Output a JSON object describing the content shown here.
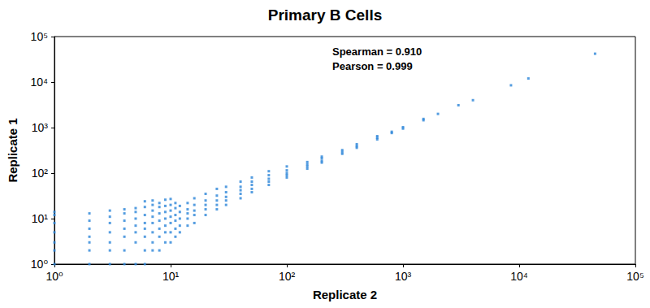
{
  "chart_data": {
    "type": "scatter",
    "title": "Primary B Cells",
    "x_label": "Replicate 2",
    "y_label": "Replicate 1",
    "annotations": [
      "Spearman = 0.910",
      "Pearson = 0.999"
    ],
    "log": true,
    "grid": false,
    "color": "#2b84d8",
    "marker": "square",
    "xlim": [
      1,
      100000
    ],
    "ylim": [
      1,
      100000
    ],
    "xticks": [
      {
        "value": 1,
        "label": "10⁰"
      },
      {
        "value": 10,
        "label": "10¹"
      },
      {
        "value": 100,
        "label": "10²"
      },
      {
        "value": 1000,
        "label": "10³"
      },
      {
        "value": 10000,
        "label": "10⁴"
      },
      {
        "value": 100000,
        "label": "10⁵"
      }
    ],
    "yticks": [
      {
        "value": 1,
        "label": "10⁰"
      },
      {
        "value": 10,
        "label": "10¹"
      },
      {
        "value": 100,
        "label": "10²"
      },
      {
        "value": 1000,
        "label": "10³"
      },
      {
        "value": 10000,
        "label": "10⁴"
      },
      {
        "value": 100000,
        "label": "10⁵"
      }
    ],
    "x": [
      1,
      1,
      1,
      1,
      1,
      1,
      1,
      2,
      2,
      2,
      2,
      2,
      2,
      2,
      3,
      3,
      3,
      3,
      3,
      3,
      3,
      4,
      4,
      4,
      4,
      4,
      4,
      4,
      5,
      5,
      5,
      5,
      5,
      5,
      5,
      6,
      6,
      6,
      6,
      6,
      6,
      6,
      6,
      7,
      7,
      7,
      7,
      7,
      7,
      7,
      7,
      8,
      8,
      8,
      8,
      8,
      8,
      8,
      9,
      9,
      9,
      9,
      9,
      9,
      9,
      10,
      10,
      10,
      10,
      10,
      10,
      10,
      11,
      11,
      11,
      11,
      11,
      11,
      12,
      12,
      12,
      12,
      12,
      14,
      14,
      14,
      14,
      14,
      16,
      16,
      16,
      16,
      16,
      20,
      20,
      20,
      20,
      20,
      25,
      25,
      25,
      25,
      25,
      30,
      30,
      30,
      30,
      30,
      40,
      40,
      40,
      40,
      40,
      50,
      50,
      50,
      50,
      50,
      70,
      70,
      70,
      70,
      70,
      100,
      100,
      100,
      100,
      100,
      150,
      150,
      150,
      150,
      200,
      200,
      200,
      200,
      300,
      300,
      300,
      400,
      400,
      400,
      600,
      600,
      600,
      800,
      800,
      1000,
      1000,
      1500,
      1500,
      2000,
      3000,
      4000,
      8500,
      12000,
      45000
    ],
    "values": [
      1,
      2,
      3,
      5,
      8,
      12,
      14,
      1,
      2,
      3,
      4,
      6,
      9,
      13,
      1,
      2,
      3,
      5,
      8,
      11,
      15,
      1,
      2,
      4,
      6,
      9,
      13,
      16,
      1,
      3,
      5,
      7,
      10,
      14,
      17,
      1,
      2,
      4,
      6,
      8,
      12,
      18,
      24,
      2,
      3,
      5,
      8,
      11,
      15,
      20,
      25,
      2,
      4,
      6,
      9,
      13,
      18,
      22,
      3,
      5,
      7,
      10,
      14,
      19,
      26,
      3,
      5,
      8,
      11,
      15,
      20,
      27,
      4,
      6,
      9,
      12,
      17,
      22,
      5,
      7,
      10,
      14,
      19,
      7,
      10,
      13,
      16,
      22,
      8,
      12,
      15,
      20,
      28,
      12,
      16,
      20,
      25,
      35,
      16,
      20,
      25,
      32,
      45,
      20,
      25,
      30,
      38,
      50,
      28,
      35,
      42,
      50,
      65,
      38,
      45,
      55,
      65,
      80,
      55,
      65,
      75,
      90,
      110,
      80,
      90,
      100,
      115,
      140,
      125,
      140,
      155,
      175,
      170,
      185,
      210,
      230,
      265,
      290,
      320,
      360,
      390,
      430,
      550,
      600,
      650,
      760,
      810,
      950,
      1020,
      1450,
      1550,
      2000,
      3100,
      4000,
      8500,
      12000,
      42000
    ]
  }
}
